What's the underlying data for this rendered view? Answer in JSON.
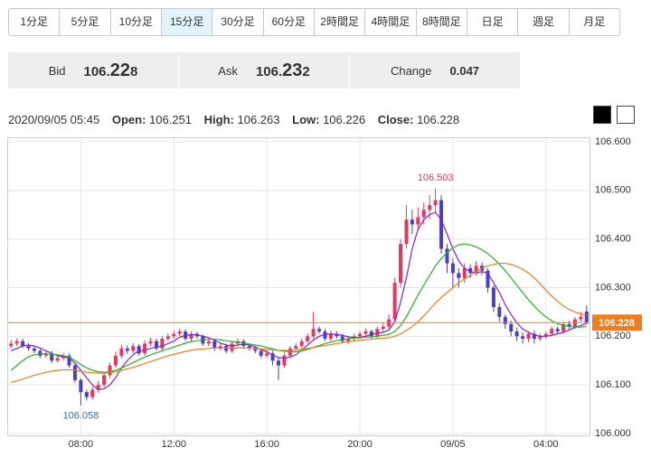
{
  "ui": {
    "buttons": [
      "1分足",
      "5分足",
      "10分足",
      "15分足",
      "30分足",
      "60分足",
      "2時間足",
      "4時間足",
      "8時間足",
      "日足",
      "週足",
      "月足"
    ],
    "active_button": 3,
    "quote": {
      "bid_label": "Bid",
      "bid": [
        "106.",
        "22",
        "8"
      ],
      "ask_label": "Ask",
      "ask": [
        "106.",
        "23",
        "2"
      ],
      "change_label": "Change",
      "change": "0.047"
    },
    "info": {
      "time": "2020/09/05 05:45",
      "open_label": "Open:",
      "open": "106.251",
      "high_label": "High:",
      "high": "106.263",
      "low_label": "Low:",
      "low": "106.226",
      "close_label": "Close:",
      "close": "106.228"
    }
  },
  "chart_data": {
    "type": "candlestick",
    "up_color": "#e8365d",
    "down_color": "#4a3fc8",
    "categories": [
      null,
      null,
      null,
      null,
      null,
      null,
      null,
      null,
      null,
      null,
      null,
      null,
      "08:00",
      null,
      null,
      null,
      null,
      null,
      null,
      null,
      null,
      null,
      null,
      null,
      null,
      null,
      null,
      null,
      "12:00",
      null,
      null,
      null,
      null,
      null,
      null,
      null,
      null,
      null,
      null,
      null,
      null,
      null,
      null,
      null,
      "16:00",
      null,
      null,
      null,
      null,
      null,
      null,
      null,
      null,
      null,
      null,
      null,
      null,
      null,
      null,
      null,
      "20:00",
      null,
      null,
      null,
      null,
      null,
      null,
      null,
      null,
      null,
      null,
      null,
      null,
      null,
      null,
      null,
      "09/05",
      null,
      null,
      null,
      null,
      null,
      null,
      null,
      null,
      null,
      null,
      null,
      null,
      null,
      null,
      null,
      "04:00",
      null,
      null,
      null,
      null,
      null,
      null,
      null
    ],
    "ohlc": [
      [
        106.18,
        106.192,
        106.175,
        106.185
      ],
      [
        106.185,
        106.196,
        106.18,
        106.19
      ],
      [
        106.19,
        106.195,
        106.176,
        106.18
      ],
      [
        106.18,
        106.186,
        106.17,
        106.175
      ],
      [
        106.175,
        106.18,
        106.165,
        106.17
      ],
      [
        106.17,
        106.176,
        106.155,
        106.16
      ],
      [
        106.16,
        106.171,
        106.156,
        106.165
      ],
      [
        106.165,
        106.17,
        106.145,
        106.15
      ],
      [
        106.15,
        106.161,
        106.146,
        106.155
      ],
      [
        106.155,
        106.166,
        106.15,
        106.16
      ],
      [
        106.16,
        106.165,
        106.135,
        106.14
      ],
      [
        106.14,
        106.146,
        106.105,
        106.11
      ],
      [
        106.11,
        106.114,
        106.058,
        106.085
      ],
      [
        106.085,
        106.09,
        106.068,
        106.075
      ],
      [
        106.075,
        106.096,
        106.07,
        106.09
      ],
      [
        106.09,
        106.108,
        106.084,
        106.1
      ],
      [
        106.1,
        106.126,
        106.095,
        106.12
      ],
      [
        106.12,
        106.146,
        106.114,
        106.14
      ],
      [
        106.14,
        106.168,
        106.135,
        106.16
      ],
      [
        106.16,
        106.182,
        106.155,
        106.175
      ],
      [
        106.175,
        106.181,
        106.164,
        106.17
      ],
      [
        106.17,
        106.186,
        106.165,
        106.18
      ],
      [
        106.18,
        106.184,
        106.16,
        106.165
      ],
      [
        106.165,
        106.192,
        106.16,
        106.185
      ],
      [
        106.185,
        106.197,
        106.18,
        106.19
      ],
      [
        106.19,
        106.195,
        106.17,
        106.175
      ],
      [
        106.175,
        106.201,
        106.171,
        106.195
      ],
      [
        106.195,
        106.206,
        106.19,
        106.2
      ],
      [
        106.2,
        106.211,
        106.195,
        106.205
      ],
      [
        106.205,
        106.216,
        106.2,
        106.21
      ],
      [
        106.21,
        106.214,
        106.19,
        106.195
      ],
      [
        106.195,
        106.21,
        106.19,
        106.205
      ],
      [
        106.205,
        106.209,
        106.195,
        106.2
      ],
      [
        106.2,
        106.204,
        106.18,
        106.185
      ],
      [
        106.185,
        106.195,
        106.18,
        106.19
      ],
      [
        106.19,
        106.194,
        106.17,
        106.175
      ],
      [
        106.175,
        106.186,
        106.17,
        106.18
      ],
      [
        106.18,
        106.185,
        106.165,
        106.17
      ],
      [
        106.17,
        106.19,
        106.166,
        106.185
      ],
      [
        106.185,
        106.196,
        106.181,
        106.19
      ],
      [
        106.19,
        106.194,
        106.175,
        106.18
      ],
      [
        106.18,
        106.186,
        106.17,
        106.175
      ],
      [
        106.175,
        106.18,
        106.165,
        106.17
      ],
      [
        106.17,
        106.175,
        106.155,
        106.16
      ],
      [
        106.16,
        106.171,
        106.155,
        106.165
      ],
      [
        106.165,
        106.17,
        106.14,
        106.15
      ],
      [
        106.15,
        106.155,
        106.11,
        106.14
      ],
      [
        106.14,
        106.166,
        106.135,
        106.16
      ],
      [
        106.16,
        106.18,
        106.155,
        106.175
      ],
      [
        106.175,
        106.186,
        106.17,
        106.18
      ],
      [
        106.18,
        106.196,
        106.175,
        106.19
      ],
      [
        106.19,
        106.206,
        106.185,
        106.2
      ],
      [
        106.2,
        106.25,
        106.195,
        106.215
      ],
      [
        106.215,
        106.22,
        106.205,
        106.21
      ],
      [
        106.21,
        106.215,
        106.19,
        106.195
      ],
      [
        106.195,
        106.212,
        106.19,
        106.205
      ],
      [
        106.205,
        106.21,
        106.195,
        106.2
      ],
      [
        106.2,
        106.205,
        106.185,
        106.19
      ],
      [
        106.19,
        106.2,
        106.184,
        106.195
      ],
      [
        106.195,
        106.206,
        106.19,
        106.2
      ],
      [
        106.2,
        106.21,
        106.195,
        106.205
      ],
      [
        106.205,
        106.216,
        106.2,
        106.21
      ],
      [
        106.21,
        106.214,
        106.195,
        106.2
      ],
      [
        106.2,
        106.22,
        106.196,
        106.215
      ],
      [
        106.215,
        106.228,
        106.21,
        106.22
      ],
      [
        106.22,
        106.245,
        106.215,
        106.235
      ],
      [
        106.235,
        106.32,
        106.23,
        106.31
      ],
      [
        106.31,
        106.4,
        106.3,
        106.39
      ],
      [
        106.39,
        106.47,
        106.38,
        106.44
      ],
      [
        106.44,
        106.46,
        106.41,
        106.43
      ],
      [
        106.43,
        106.465,
        106.42,
        106.445
      ],
      [
        106.445,
        106.475,
        106.43,
        106.46
      ],
      [
        106.46,
        106.49,
        106.44,
        106.47
      ],
      [
        106.47,
        106.503,
        106.455,
        106.48
      ],
      [
        106.48,
        106.49,
        106.37,
        106.38
      ],
      [
        106.38,
        106.39,
        106.33,
        106.35
      ],
      [
        106.35,
        106.36,
        106.3,
        106.33
      ],
      [
        106.33,
        106.34,
        106.3,
        106.32
      ],
      [
        106.32,
        106.35,
        106.31,
        106.34
      ],
      [
        106.34,
        106.348,
        106.32,
        106.33
      ],
      [
        106.33,
        106.355,
        106.325,
        106.345
      ],
      [
        106.345,
        106.352,
        106.326,
        106.335
      ],
      [
        106.335,
        106.34,
        106.29,
        106.3
      ],
      [
        106.3,
        106.305,
        106.25,
        106.26
      ],
      [
        106.26,
        106.268,
        106.23,
        106.24
      ],
      [
        106.24,
        106.245,
        106.215,
        106.225
      ],
      [
        106.225,
        106.232,
        106.2,
        106.21
      ],
      [
        106.21,
        106.218,
        106.19,
        106.2
      ],
      [
        106.2,
        106.208,
        106.185,
        106.195
      ],
      [
        106.195,
        106.21,
        106.188,
        106.205
      ],
      [
        106.205,
        106.212,
        106.185,
        106.195
      ],
      [
        106.195,
        106.206,
        106.19,
        106.2
      ],
      [
        106.2,
        106.21,
        106.195,
        106.205
      ],
      [
        106.205,
        106.22,
        106.2,
        106.215
      ],
      [
        106.215,
        106.22,
        106.205,
        106.21
      ],
      [
        106.21,
        106.23,
        106.205,
        106.225
      ],
      [
        106.225,
        106.232,
        106.212,
        106.22
      ],
      [
        106.22,
        106.24,
        106.215,
        106.235
      ],
      [
        106.235,
        106.25,
        106.23,
        106.24
      ],
      [
        106.251,
        106.263,
        106.226,
        106.228
      ]
    ],
    "series": [
      {
        "color": "#8a1fd6",
        "values": [
          106.17,
          106.175,
          106.18,
          106.182,
          106.18,
          106.176,
          106.17,
          106.165,
          106.16,
          106.158,
          106.155,
          106.145,
          106.13,
          106.115,
          106.1,
          106.09,
          106.092,
          106.1,
          106.115,
          106.135,
          106.15,
          106.162,
          106.17,
          106.172,
          106.175,
          106.178,
          106.18,
          106.185,
          106.19,
          106.198,
          106.202,
          106.203,
          106.203,
          106.2,
          106.197,
          106.192,
          106.186,
          106.182,
          106.18,
          106.182,
          106.184,
          106.182,
          106.178,
          106.173,
          106.168,
          106.162,
          106.156,
          106.155,
          106.157,
          106.162,
          106.172,
          106.182,
          106.192,
          106.2,
          106.204,
          106.205,
          106.204,
          106.202,
          106.199,
          106.197,
          106.198,
          106.2,
          106.204,
          106.206,
          106.208,
          106.213,
          106.23,
          106.27,
          106.32,
          106.38,
          106.42,
          106.44,
          106.45,
          106.455,
          106.44,
          106.41,
          106.38,
          106.355,
          106.34,
          106.333,
          106.33,
          106.333,
          106.33,
          106.31,
          106.29,
          106.265,
          106.245,
          106.228,
          106.215,
          106.208,
          106.203,
          106.2,
          106.2,
          106.202,
          106.205,
          106.208,
          106.213,
          106.218,
          106.222,
          106.226
        ]
      },
      {
        "color": "#22b822",
        "values": [
          106.13,
          106.14,
          106.15,
          106.158,
          106.162,
          106.164,
          106.164,
          106.163,
          106.162,
          106.16,
          106.157,
          106.15,
          106.142,
          106.135,
          106.13,
          106.127,
          106.126,
          106.127,
          106.13,
          106.135,
          106.14,
          106.146,
          106.152,
          106.157,
          106.162,
          106.166,
          106.17,
          106.174,
          106.178,
          106.182,
          106.186,
          106.189,
          106.191,
          106.193,
          106.194,
          106.194,
          106.193,
          106.191,
          106.189,
          106.188,
          106.186,
          106.184,
          106.182,
          106.18,
          106.177,
          106.174,
          106.171,
          106.169,
          106.168,
          106.168,
          106.17,
          106.173,
          106.177,
          106.181,
          106.185,
          106.188,
          106.191,
          106.193,
          106.195,
          106.196,
          106.197,
          106.198,
          106.199,
          106.2,
          106.202,
          106.204,
          106.21,
          106.222,
          106.24,
          106.262,
          106.285,
          106.305,
          106.325,
          106.345,
          106.36,
          106.372,
          106.382,
          106.388,
          106.39,
          106.388,
          106.384,
          106.378,
          106.37,
          106.36,
          106.348,
          106.335,
          106.32,
          106.305,
          106.29,
          106.275,
          106.262,
          106.25,
          106.24,
          106.232,
          106.226,
          106.222,
          106.22,
          106.219,
          106.219,
          106.22
        ]
      },
      {
        "color": "#f07c1c",
        "values": [
          106.105,
          106.108,
          106.112,
          106.116,
          106.12,
          106.123,
          106.126,
          106.128,
          106.13,
          106.131,
          106.131,
          106.13,
          106.128,
          106.126,
          106.125,
          106.124,
          106.124,
          106.125,
          106.127,
          106.13,
          106.133,
          106.136,
          106.14,
          106.144,
          106.148,
          106.152,
          106.156,
          106.16,
          106.163,
          106.166,
          106.169,
          106.171,
          106.173,
          106.174,
          106.175,
          106.176,
          106.176,
          106.176,
          106.176,
          106.176,
          106.176,
          106.176,
          106.175,
          106.174,
          106.173,
          106.172,
          106.171,
          106.171,
          106.171,
          106.172,
          106.173,
          106.175,
          106.177,
          106.179,
          106.181,
          106.183,
          106.185,
          106.187,
          106.189,
          106.19,
          106.192,
          106.193,
          106.194,
          106.195,
          106.196,
          106.197,
          106.2,
          106.205,
          106.212,
          106.22,
          106.23,
          106.242,
          106.255,
          106.268,
          106.28,
          106.29,
          106.3,
          106.31,
          106.318,
          106.325,
          106.332,
          106.34,
          106.345,
          106.348,
          106.35,
          106.35,
          106.348,
          106.344,
          106.338,
          106.33,
          106.32,
          106.308,
          106.295,
          106.283,
          106.272,
          106.262,
          106.255,
          106.25,
          106.246,
          106.243
        ]
      }
    ],
    "current_price": {
      "value": 106.228,
      "label": "106.228",
      "color": "#f07c1c"
    },
    "annotations": [
      {
        "value": 106.503,
        "label": "106.503",
        "kind": "high",
        "color": "#e8365d"
      },
      {
        "value": 106.058,
        "label": "106.058",
        "kind": "low",
        "color": "#3a6aa8"
      }
    ],
    "ylim": [
      106.0,
      106.6
    ],
    "yticks": [
      {
        "value": 106.0,
        "label": "106.000"
      },
      {
        "value": 106.1,
        "label": "106.100"
      },
      {
        "value": 106.2,
        "label": "106.200"
      },
      {
        "value": 106.3,
        "label": "106.300"
      },
      {
        "value": 106.4,
        "label": "106.400"
      },
      {
        "value": 106.5,
        "label": "106.500"
      },
      {
        "value": 106.6,
        "label": "106.600"
      }
    ],
    "grid": true
  }
}
